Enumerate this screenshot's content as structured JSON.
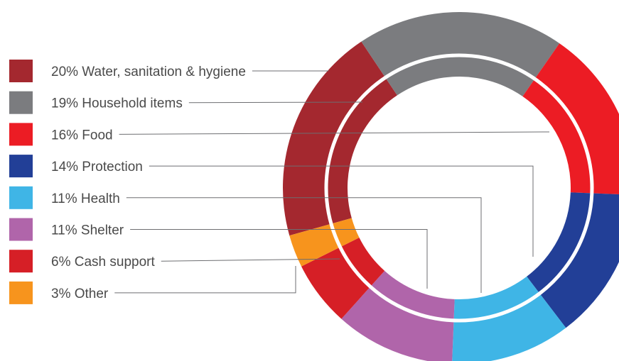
{
  "chart_data": {
    "type": "pie",
    "variant": "donut",
    "slices": [
      {
        "label": "Water, sanitation & hygiene",
        "value": 20,
        "display": "20% Water, sanitation & hygiene",
        "color": "#a4282f"
      },
      {
        "label": "Household items",
        "value": 19,
        "display": "19% Household items",
        "color": "#7b7c7f"
      },
      {
        "label": "Food",
        "value": 16,
        "display": "16% Food",
        "color": "#ec1c24"
      },
      {
        "label": "Protection",
        "value": 14,
        "display": "14% Protection",
        "color": "#223f97"
      },
      {
        "label": "Health",
        "value": 11,
        "display": "11% Health",
        "color": "#3fb5e6"
      },
      {
        "label": "Shelter",
        "value": 11,
        "display": "11% Shelter",
        "color": "#b065aa"
      },
      {
        "label": "Cash support",
        "value": 6,
        "display": "6% Cash support",
        "color": "#d61f26"
      },
      {
        "label": "Other",
        "value": 3,
        "display": "3% Other",
        "color": "#f7941d"
      }
    ],
    "legend_position": "left"
  }
}
